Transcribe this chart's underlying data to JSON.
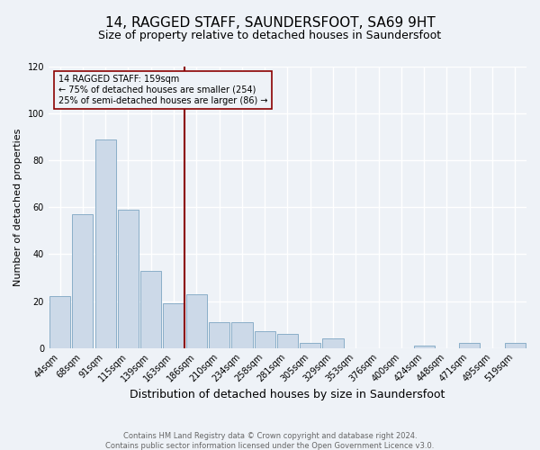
{
  "title": "14, RAGGED STAFF, SAUNDERSFOOT, SA69 9HT",
  "subtitle": "Size of property relative to detached houses in Saundersfoot",
  "xlabel": "Distribution of detached houses by size in Saundersfoot",
  "ylabel": "Number of detached properties",
  "bar_labels": [
    "44sqm",
    "68sqm",
    "91sqm",
    "115sqm",
    "139sqm",
    "163sqm",
    "186sqm",
    "210sqm",
    "234sqm",
    "258sqm",
    "281sqm",
    "305sqm",
    "329sqm",
    "353sqm",
    "376sqm",
    "400sqm",
    "424sqm",
    "448sqm",
    "471sqm",
    "495sqm",
    "519sqm"
  ],
  "bar_values": [
    22,
    57,
    89,
    59,
    33,
    19,
    23,
    11,
    11,
    7,
    6,
    2,
    4,
    0,
    0,
    0,
    1,
    0,
    2,
    0,
    2
  ],
  "bar_color": "#ccd9e8",
  "bar_edgecolor": "#8aaec8",
  "vline_color": "#8b0000",
  "annotation_text": "14 RAGGED STAFF: 159sqm\n← 75% of detached houses are smaller (254)\n25% of semi-detached houses are larger (86) →",
  "annotation_box_edgecolor": "#8b0000",
  "footer_line1": "Contains HM Land Registry data © Crown copyright and database right 2024.",
  "footer_line2": "Contains public sector information licensed under the Open Government Licence v3.0.",
  "background_color": "#eef2f7",
  "grid_color": "#ffffff",
  "title_fontsize": 11,
  "subtitle_fontsize": 9,
  "xlabel_fontsize": 9,
  "ylabel_fontsize": 8,
  "tick_fontsize": 7,
  "footer_fontsize": 6,
  "annot_fontsize": 7
}
